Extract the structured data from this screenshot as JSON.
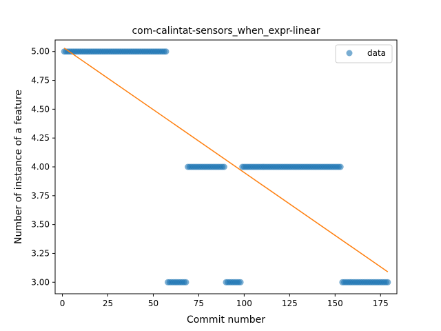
{
  "chart_data": {
    "type": "scatter",
    "title": "com-calintat-sensors_when_expr-linear",
    "xlabel": "Commit number",
    "ylabel": "Number of instance of a feature",
    "xlim": [
      -4,
      184
    ],
    "ylim": [
      2.9,
      5.1
    ],
    "xticks": [
      0,
      25,
      50,
      75,
      100,
      125,
      150,
      175
    ],
    "yticks": [
      3.0,
      3.25,
      3.5,
      3.75,
      4.0,
      4.25,
      4.5,
      4.75,
      5.0
    ],
    "legend": {
      "position": "top-right",
      "entries": [
        "data"
      ]
    },
    "colors": {
      "data": "#1f77b4",
      "fit": "#ff7f0e"
    },
    "grid": false,
    "series": [
      {
        "name": "data",
        "kind": "scatter",
        "segments": [
          {
            "x_start": 1,
            "x_end": 57,
            "y": 5.0
          },
          {
            "x_start": 58,
            "x_end": 68,
            "y": 3.0
          },
          {
            "x_start": 69,
            "x_end": 89,
            "y": 4.0
          },
          {
            "x_start": 90,
            "x_end": 98,
            "y": 3.0
          },
          {
            "x_start": 99,
            "x_end": 153,
            "y": 4.0
          },
          {
            "x_start": 154,
            "x_end": 179,
            "y": 3.0
          }
        ]
      },
      {
        "kind": "line",
        "points": [
          [
            1,
            5.03
          ],
          [
            179,
            3.09
          ]
        ]
      }
    ]
  }
}
